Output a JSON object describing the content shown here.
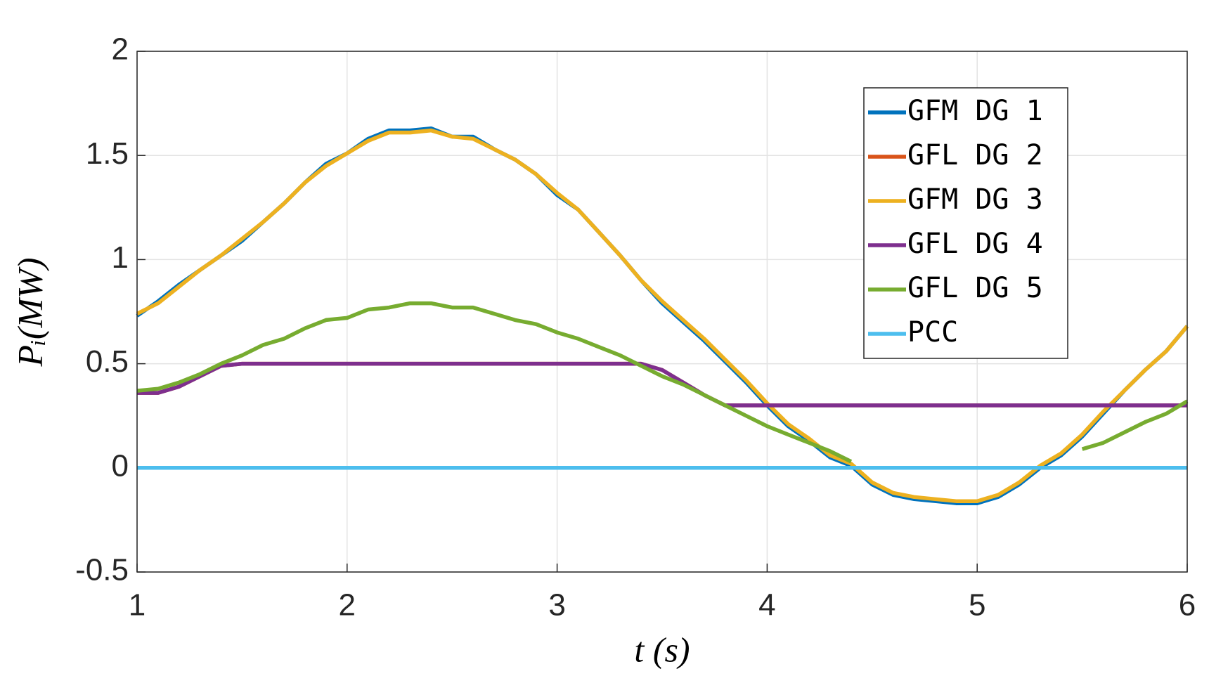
{
  "chart_data": {
    "type": "line",
    "xlabel": "t (s)",
    "ylabel": "Pᵢ(MW)",
    "x": [
      1.0,
      1.1,
      1.2,
      1.3,
      1.4,
      1.5,
      1.6,
      1.7,
      1.8,
      1.9,
      2.0,
      2.1,
      2.2,
      2.3,
      2.4,
      2.5,
      2.6,
      2.7,
      2.8,
      2.9,
      3.0,
      3.1,
      3.2,
      3.3,
      3.4,
      3.5,
      3.6,
      3.7,
      3.8,
      3.9,
      4.0,
      4.1,
      4.2,
      4.3,
      4.4,
      4.5,
      4.6,
      4.7,
      4.8,
      4.9,
      5.0,
      5.1,
      5.2,
      5.3,
      5.4,
      5.5,
      5.6,
      5.7,
      5.8,
      5.9,
      6.0
    ],
    "series": [
      {
        "name": "GFM DG 1",
        "color": "#0072BD",
        "values": [
          0.73,
          0.8,
          0.88,
          0.95,
          1.02,
          1.09,
          1.18,
          1.27,
          1.37,
          1.46,
          1.51,
          1.58,
          1.62,
          1.62,
          1.63,
          1.59,
          1.59,
          1.53,
          1.48,
          1.41,
          1.31,
          1.24,
          1.13,
          1.02,
          0.9,
          0.79,
          0.7,
          0.61,
          0.51,
          0.41,
          0.3,
          0.2,
          0.13,
          0.05,
          0.01,
          -0.08,
          -0.13,
          -0.15,
          -0.16,
          -0.17,
          -0.17,
          -0.14,
          -0.08,
          0.0,
          0.06,
          0.15,
          0.26,
          0.37,
          0.47,
          0.56,
          0.68
        ]
      },
      {
        "name": "GFL DG 2",
        "color": "#D95319",
        "values": [
          0.36,
          0.36,
          0.39,
          0.44,
          0.49,
          0.5,
          0.5,
          0.5,
          0.5,
          0.5,
          0.5,
          0.5,
          0.5,
          0.5,
          0.5,
          0.5,
          0.5,
          0.5,
          0.5,
          0.5,
          0.5,
          0.5,
          0.5,
          0.5,
          0.5,
          0.47,
          0.41,
          0.35,
          0.3,
          0.3,
          0.3,
          0.3,
          0.3,
          0.3,
          0.3,
          0.3,
          0.3,
          0.3,
          0.3,
          0.3,
          0.3,
          0.3,
          0.3,
          0.3,
          0.3,
          0.3,
          0.3,
          0.3,
          0.3,
          0.3,
          0.3
        ]
      },
      {
        "name": "GFM DG 3",
        "color": "#EDB120",
        "values": [
          0.74,
          0.79,
          0.87,
          0.95,
          1.02,
          1.1,
          1.18,
          1.27,
          1.37,
          1.45,
          1.51,
          1.57,
          1.61,
          1.61,
          1.62,
          1.59,
          1.58,
          1.53,
          1.48,
          1.41,
          1.32,
          1.24,
          1.13,
          1.02,
          0.9,
          0.8,
          0.71,
          0.62,
          0.52,
          0.42,
          0.31,
          0.21,
          0.14,
          0.06,
          0.02,
          -0.07,
          -0.12,
          -0.14,
          -0.15,
          -0.16,
          -0.16,
          -0.13,
          -0.07,
          0.01,
          0.07,
          0.16,
          0.27,
          0.37,
          0.47,
          0.56,
          0.68
        ]
      },
      {
        "name": "GFL DG 4",
        "color": "#7E2F8E",
        "values": [
          0.36,
          0.36,
          0.39,
          0.44,
          0.49,
          0.5,
          0.5,
          0.5,
          0.5,
          0.5,
          0.5,
          0.5,
          0.5,
          0.5,
          0.5,
          0.5,
          0.5,
          0.5,
          0.5,
          0.5,
          0.5,
          0.5,
          0.5,
          0.5,
          0.5,
          0.47,
          0.41,
          0.35,
          0.3,
          0.3,
          0.3,
          0.3,
          0.3,
          0.3,
          0.3,
          0.3,
          0.3,
          0.3,
          0.3,
          0.3,
          0.3,
          0.3,
          0.3,
          0.3,
          0.3,
          0.3,
          0.3,
          0.3,
          0.3,
          0.3,
          0.3
        ]
      },
      {
        "name": "GFL DG 5",
        "color": "#77AC30",
        "values": [
          0.37,
          0.38,
          0.41,
          0.45,
          0.5,
          0.54,
          0.59,
          0.62,
          0.67,
          0.71,
          0.72,
          0.76,
          0.77,
          0.79,
          0.79,
          0.77,
          0.77,
          0.74,
          0.71,
          0.69,
          0.65,
          0.62,
          0.58,
          0.54,
          0.49,
          0.44,
          0.4,
          0.35,
          0.3,
          0.25,
          0.2,
          0.16,
          0.12,
          0.08,
          0.03,
          null,
          null,
          null,
          null,
          null,
          null,
          null,
          null,
          null,
          null,
          0.09,
          0.12,
          0.17,
          0.22,
          0.26,
          0.32
        ]
      },
      {
        "name": "PCC",
        "color": "#4DBEEE",
        "values": [
          0,
          0,
          0,
          0,
          0,
          0,
          0,
          0,
          0,
          0,
          0,
          0,
          0,
          0,
          0,
          0,
          0,
          0,
          0,
          0,
          0,
          0,
          0,
          0,
          0,
          0,
          0,
          0,
          0,
          0,
          0,
          0,
          0,
          0,
          0,
          0,
          0,
          0,
          0,
          0,
          0,
          0,
          0,
          0,
          0,
          0,
          0,
          0,
          0,
          0,
          0
        ]
      }
    ],
    "xlim": [
      1,
      6
    ],
    "xticks": [
      1,
      2,
      3,
      4,
      5,
      6
    ],
    "ylim": [
      -0.5,
      2
    ],
    "yticks": [
      -0.5,
      0,
      0.5,
      1,
      1.5,
      2
    ],
    "grid": true,
    "legend": "northeast"
  }
}
